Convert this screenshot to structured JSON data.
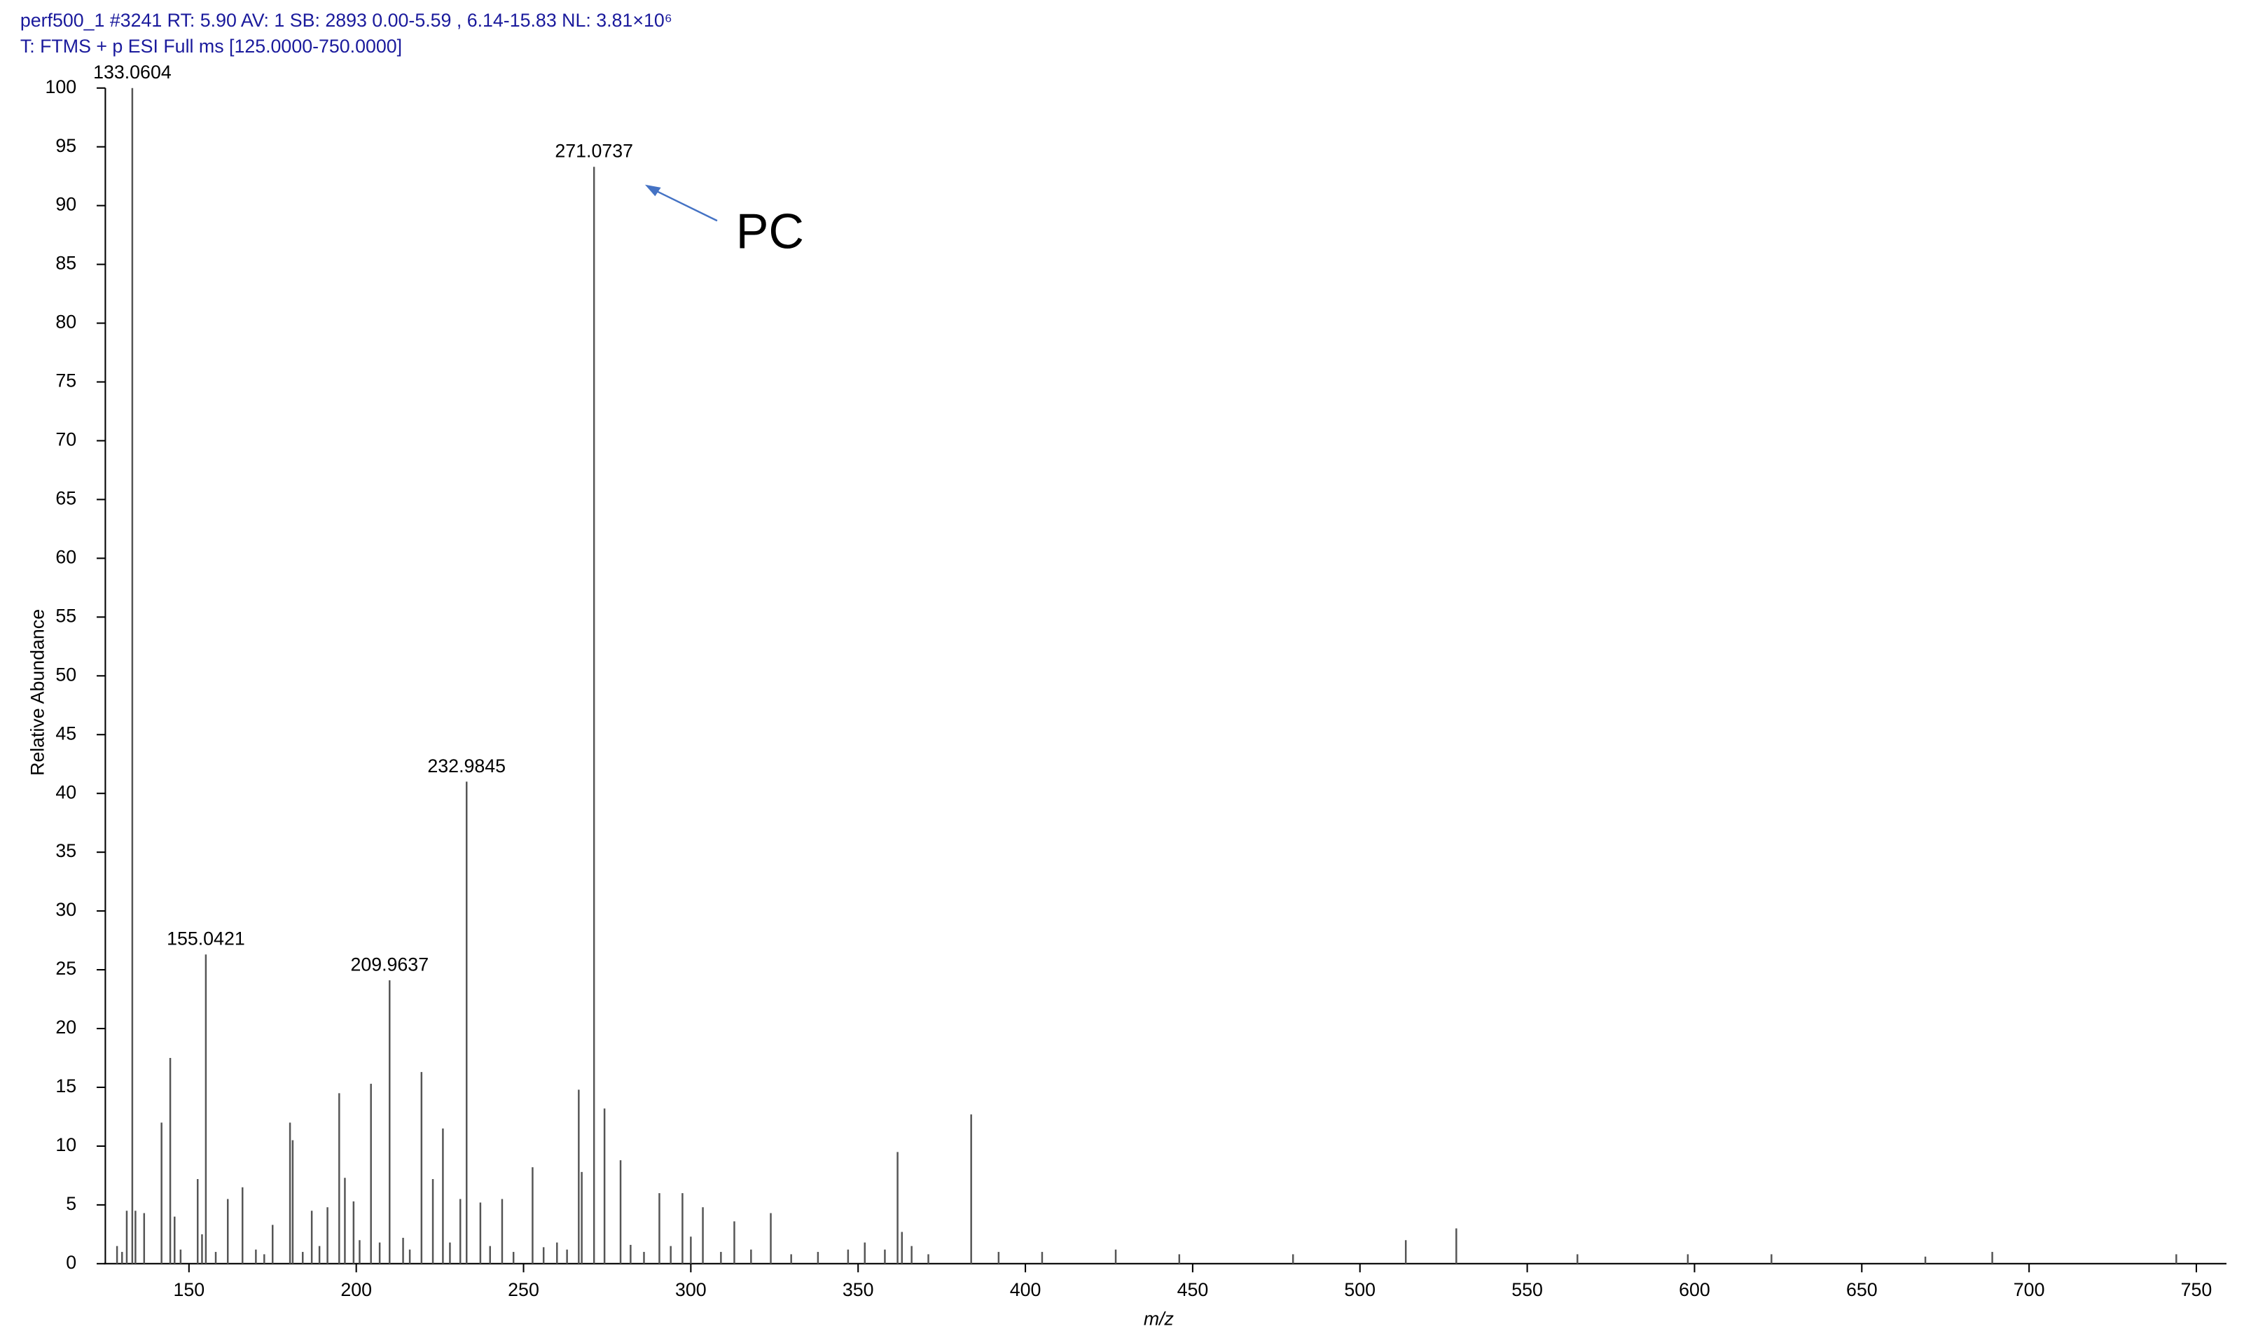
{
  "header": {
    "lines": [
      "perf500_1 #3241   RT: 5.90   AV: 1   SB: 2893  0.00-5.59 , 6.14-15.83  NL: 3.81×10⁶",
      "T: FTMS + p ESI Full ms [125.0000-750.0000]"
    ]
  },
  "chart_data": {
    "type": "bar",
    "xlabel": "m/z",
    "ylabel": "Relative Abundance",
    "annotation": "PC",
    "color": "#555555",
    "x": [
      128.5,
      130.0,
      131.4,
      133.0604,
      134.0,
      136.6,
      141.8,
      144.4,
      145.7,
      147.5,
      152.6,
      153.9,
      155.0421,
      158.0,
      161.6,
      166.0,
      170.0,
      172.5,
      175.0,
      180.2,
      181.0,
      184.0,
      186.7,
      189.0,
      191.4,
      194.9,
      196.6,
      199.2,
      201.0,
      204.4,
      207.0,
      209.9637,
      214.0,
      216.0,
      219.5,
      222.9,
      225.9,
      228.0,
      231.1,
      232.9845,
      237.1,
      240.0,
      243.6,
      247.0,
      252.7,
      256.0,
      260.0,
      263.0,
      266.5,
      267.4,
      271.0737,
      274.2,
      279.0,
      282.0,
      286.0,
      290.6,
      294.0,
      297.5,
      300.0,
      303.6,
      309.0,
      313.0,
      318.0,
      323.9,
      330.0,
      338.0,
      347.0,
      352.0,
      358.0,
      361.8,
      363.1,
      366.0,
      371.0,
      383.8,
      392.0,
      405.0,
      427.0,
      446.0,
      480.0,
      513.7,
      528.8,
      565.0,
      598.0,
      623.0,
      669.0,
      689.0,
      744.0
    ],
    "values": [
      1.5,
      1.0,
      4.5,
      100,
      4.5,
      4.3,
      12,
      17.5,
      4,
      1.2,
      7.2,
      2.5,
      26.3,
      1.0,
      5.5,
      6.5,
      1.2,
      0.8,
      3.3,
      12,
      10.5,
      1.0,
      4.5,
      1.5,
      4.8,
      14.5,
      7.3,
      5.3,
      2.0,
      15.3,
      1.8,
      24.1,
      2.2,
      1.2,
      16.3,
      7.2,
      11.5,
      1.8,
      5.5,
      41.0,
      5.2,
      1.5,
      5.5,
      1.0,
      8.2,
      1.4,
      1.8,
      1.2,
      14.8,
      7.8,
      93.3,
      13.2,
      8.8,
      1.6,
      1.0,
      6.0,
      1.5,
      6.0,
      2.3,
      4.8,
      1.0,
      3.6,
      1.2,
      4.3,
      0.8,
      1.0,
      1.2,
      1.8,
      1.2,
      9.5,
      2.7,
      1.5,
      0.8,
      12.7,
      1.0,
      1.0,
      1.2,
      0.8,
      0.8,
      2.0,
      3.0,
      0.8,
      0.8,
      0.8,
      0.6,
      1.0,
      0.8
    ],
    "xlim": [
      125,
      759
    ],
    "ylim": [
      0,
      100
    ],
    "xticks": [
      150,
      200,
      250,
      300,
      350,
      400,
      450,
      500,
      550,
      600,
      650,
      700,
      750
    ],
    "yticks": [
      0,
      5,
      10,
      15,
      20,
      25,
      30,
      35,
      40,
      45,
      50,
      55,
      60,
      65,
      70,
      75,
      80,
      85,
      90,
      95,
      100
    ]
  }
}
